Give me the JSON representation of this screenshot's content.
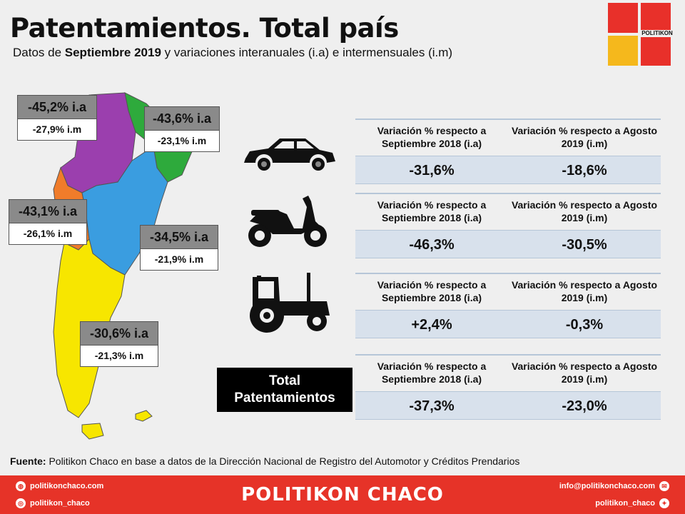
{
  "title": "Patentamientos. Total país",
  "subtitle": {
    "prefix": "Datos de ",
    "bold": "Septiembre 2019",
    "suffix": " y variaciones interanuales (i.a) e intermensuales (i.m)"
  },
  "logo_text": "POLITIKON",
  "regions": [
    {
      "ia": "-45,2% i.a",
      "im": "-27,9% i.m",
      "color": "#9b3fae"
    },
    {
      "ia": "-43,6% i.a",
      "im": "-23,1% i.m",
      "color": "#2eaa3c"
    },
    {
      "ia": "-43,1% i.a",
      "im": "-26,1% i.m",
      "color": "#f07c2a"
    },
    {
      "ia": "-34,5% i.a",
      "im": "-21,9% i.m",
      "color": "#3a9de0"
    },
    {
      "ia": "-30,6% i.a",
      "im": "-21,3% i.m",
      "color": "#f7e600"
    }
  ],
  "tables": [
    {
      "icon": "car-icon",
      "col1": "Variación % respecto a Septiembre 2018 (i.a)",
      "col2": "Variación % respecto a Agosto 2019 (i.m)",
      "v1": "-31,6%",
      "v2": "-18,6%"
    },
    {
      "icon": "motorcycle-icon",
      "col1": "Variación % respecto a Septiembre 2018 (i.a)",
      "col2": "Variación % respecto a Agosto 2019 (i.m)",
      "v1": "-46,3%",
      "v2": "-30,5%"
    },
    {
      "icon": "tractor-icon",
      "col1": "Variación % respecto a Septiembre 2018 (i.a)",
      "col2": "Variación % respecto a Agosto 2019 (i.m)",
      "v1": "+2,4%",
      "v2": "-0,3%"
    },
    {
      "icon": "",
      "col1": "Variación % respecto a Septiembre 2018 (i.a)",
      "col2": "Variación % respecto a Agosto 2019 (i.m)",
      "v1": "-37,3%",
      "v2": "-23,0%"
    }
  ],
  "total_label_line1": "Total",
  "total_label_line2": "Patentamientos",
  "source": {
    "label": "Fuente:",
    "text": " Politikon Chaco en base a datos de la Dirección Nacional de Registro del Automotor y Créditos Prendarios"
  },
  "footer": {
    "brand": "POLITIKON CHACO",
    "web": "politikonchaco.com",
    "instagram": "politikon_chaco",
    "email": "info@politikonchaco.com",
    "twitter": "politikon_chaco"
  }
}
